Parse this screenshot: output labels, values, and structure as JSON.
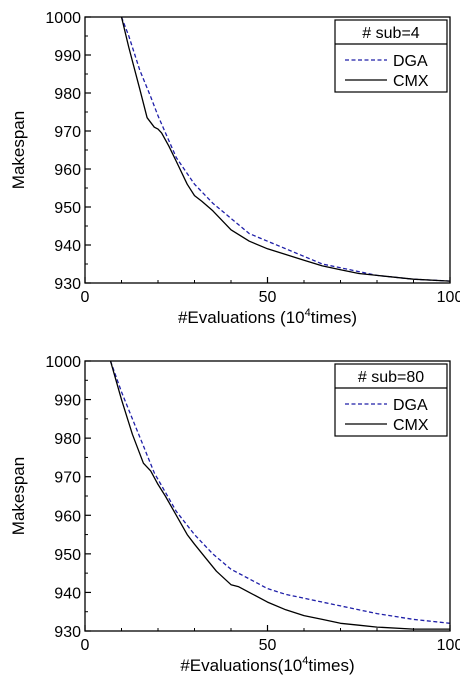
{
  "chart_data": [
    {
      "type": "line",
      "legend_title": "# sub=4",
      "legend_placement": "top-right",
      "xlabel": "#Evaluations (10",
      "xlabel_sup": "4",
      "xlabel_suffix": "times)",
      "ylabel": "Makespan",
      "xlim": [
        0,
        100
      ],
      "ylim": [
        930,
        1000
      ],
      "xticks": [
        0,
        50,
        100
      ],
      "yticks": [
        930,
        940,
        950,
        960,
        970,
        980,
        990,
        1000
      ],
      "grid": false,
      "series": [
        {
          "name": "DGA",
          "color": "#1f1fa8",
          "dash": "dashed",
          "x": [
            10,
            12,
            15,
            18,
            20,
            25,
            30,
            35,
            40,
            45,
            50,
            55,
            60,
            65,
            70,
            75,
            80,
            90,
            100
          ],
          "y": [
            1000,
            995,
            986,
            979,
            974,
            963,
            956,
            951,
            947,
            943,
            941,
            939,
            937,
            935,
            934,
            933,
            932,
            931,
            930.5
          ]
        },
        {
          "name": "CMX",
          "color": "#000000",
          "dash": "solid",
          "x": [
            10,
            12,
            15,
            17,
            19,
            20,
            21,
            23,
            25,
            28,
            30,
            32,
            35,
            38,
            40,
            45,
            50,
            55,
            60,
            65,
            70,
            75,
            80,
            90,
            100
          ],
          "y": [
            1000,
            992,
            981,
            973.5,
            971,
            970.5,
            969.5,
            966,
            962,
            956,
            953,
            951.5,
            949,
            946,
            944,
            941,
            939,
            937.5,
            936,
            934.5,
            933.5,
            932.5,
            932,
            931,
            930.5
          ]
        }
      ]
    },
    {
      "type": "line",
      "legend_title": "# sub=80",
      "legend_placement": "top-right",
      "xlabel": "#Evaluations(10",
      "xlabel_sup": "4",
      "xlabel_suffix": "times)",
      "ylabel": "Makespan",
      "xlim": [
        0,
        100
      ],
      "ylim": [
        930,
        1000
      ],
      "xticks": [
        0,
        50,
        100
      ],
      "yticks": [
        930,
        940,
        950,
        960,
        970,
        980,
        990,
        1000
      ],
      "grid": false,
      "series": [
        {
          "name": "DGA",
          "color": "#1f1fa8",
          "dash": "dashed",
          "x": [
            7,
            10,
            13,
            16,
            19,
            22,
            25,
            30,
            35,
            40,
            45,
            50,
            55,
            60,
            65,
            70,
            75,
            80,
            90,
            100
          ],
          "y": [
            1000,
            992,
            985,
            978,
            971,
            966,
            961,
            955,
            950,
            946,
            943.5,
            941,
            939.5,
            938.5,
            937.5,
            936.5,
            935.5,
            934.5,
            933,
            932
          ]
        },
        {
          "name": "CMX",
          "color": "#000000",
          "dash": "solid",
          "x": [
            7,
            10,
            13,
            16,
            18,
            20,
            22,
            25,
            28,
            30,
            33,
            36,
            40,
            42,
            45,
            50,
            55,
            60,
            65,
            70,
            75,
            80,
            90,
            100
          ],
          "y": [
            1000,
            990,
            981,
            973.5,
            971.5,
            968,
            965,
            960,
            955,
            952.5,
            949,
            945.5,
            942,
            941.5,
            940,
            937.5,
            935.5,
            934,
            933,
            932,
            931.5,
            931,
            930.5,
            930.5
          ]
        }
      ]
    }
  ]
}
